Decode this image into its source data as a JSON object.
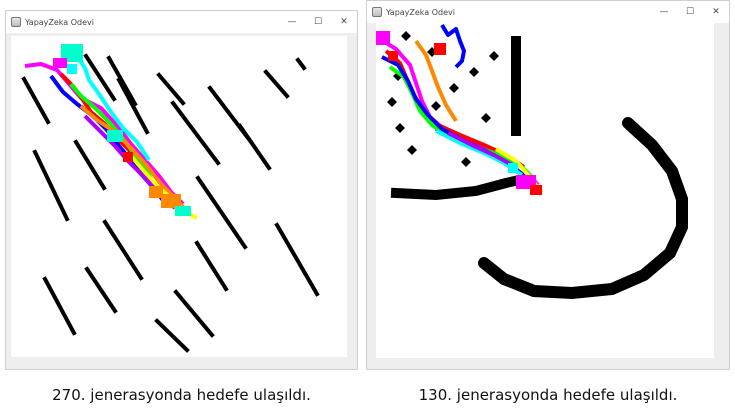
{
  "windows": [
    {
      "title": "YapayZeka Odevi",
      "minimize_glyph": "—",
      "maximize_glyph": "☐",
      "close_glyph": "✕",
      "caption": "270. jenerasyonda hedefe ulaşıldı."
    },
    {
      "title": "YapayZeka Odevi",
      "minimize_glyph": "—",
      "maximize_glyph": "☐",
      "close_glyph": "✕",
      "caption": "130. jenerasyonda hedefe ulaşıldı."
    }
  ],
  "colors": {
    "obstacle": "#000000",
    "paths": [
      "#ff00ff",
      "#ff0000",
      "#00ffff",
      "#00ff00",
      "#0000ff",
      "#ff8800",
      "#ffff00",
      "#aa00ff"
    ]
  },
  "icons": {
    "app": "java-app-icon"
  }
}
